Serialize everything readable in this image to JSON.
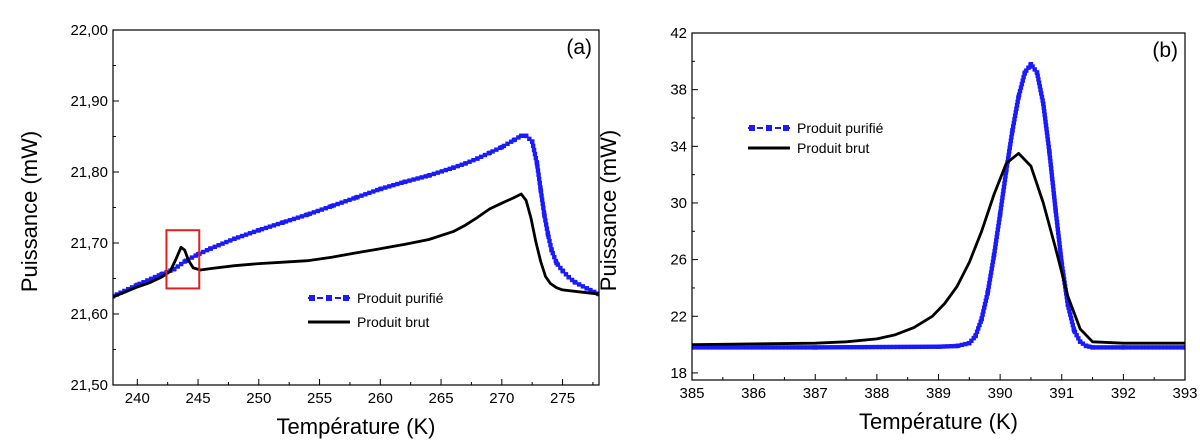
{
  "colors": {
    "purified": "#1a1aff",
    "raw": "#000000",
    "highlight_box": "#e02020"
  },
  "chart_data": [
    {
      "type": "line",
      "panel_label": "(a)",
      "xlabel": "Température (K)",
      "ylabel": "Puissance (mW)",
      "xlim": [
        238,
        278
      ],
      "ylim": [
        21.5,
        22.0
      ],
      "xticks": [
        "240",
        "245",
        "250",
        "255",
        "260",
        "265",
        "270",
        "275"
      ],
      "yticks": [
        "21,50",
        "21,60",
        "21,70",
        "21,80",
        "21,90",
        "22,00"
      ],
      "grid": false,
      "legend_position": "lower-center",
      "highlight_region": {
        "x": [
          242.4,
          245.1
        ],
        "y": [
          21.636,
          21.718
        ]
      },
      "series": [
        {
          "name": "Produit purifié",
          "style": "dashed-square-markers",
          "x": [
            238,
            240,
            242,
            243,
            244,
            245,
            246,
            248,
            250,
            252,
            254,
            256,
            258,
            260,
            262,
            264,
            266,
            267,
            268,
            269,
            270,
            271,
            271.6,
            272,
            272.5,
            272.9,
            273.2,
            273.5,
            273.8,
            274.1,
            274.5,
            275,
            275.5,
            276,
            277,
            278
          ],
          "y": [
            21.625,
            21.641,
            21.656,
            21.663,
            21.675,
            21.684,
            21.692,
            21.706,
            21.718,
            21.729,
            21.74,
            21.752,
            21.764,
            21.776,
            21.786,
            21.795,
            21.806,
            21.812,
            21.819,
            21.827,
            21.835,
            21.845,
            21.851,
            21.851,
            21.843,
            21.812,
            21.775,
            21.74,
            21.712,
            21.69,
            21.672,
            21.661,
            21.652,
            21.645,
            21.636,
            21.628
          ]
        },
        {
          "name": "Produit brut",
          "style": "solid",
          "x": [
            238,
            240,
            241,
            242,
            242.7,
            243.2,
            243.6,
            243.9,
            244.2,
            244.6,
            245.2,
            246,
            248,
            250,
            252,
            254,
            256,
            258,
            260,
            262,
            264,
            266,
            267,
            268,
            269,
            270,
            271,
            271.6,
            272,
            272.4,
            272.8,
            273.2,
            273.6,
            274,
            274.5,
            275,
            276,
            277,
            278
          ],
          "y": [
            21.624,
            21.638,
            21.644,
            21.652,
            21.66,
            21.678,
            21.694,
            21.69,
            21.676,
            21.665,
            21.662,
            21.664,
            21.668,
            21.671,
            21.673,
            21.675,
            21.68,
            21.686,
            21.692,
            21.698,
            21.705,
            21.716,
            21.725,
            21.736,
            21.748,
            21.756,
            21.764,
            21.769,
            21.76,
            21.735,
            21.702,
            21.674,
            21.653,
            21.643,
            21.637,
            21.634,
            21.632,
            21.63,
            21.628
          ]
        }
      ]
    },
    {
      "type": "line",
      "panel_label": "(b)",
      "xlabel": "Température (K)",
      "ylabel": "Puissance (mW)",
      "xlim": [
        385,
        393
      ],
      "ylim": [
        17.5,
        42
      ],
      "xticks": [
        "385",
        "386",
        "387",
        "388",
        "389",
        "390",
        "391",
        "392",
        "393"
      ],
      "yticks": [
        "18",
        "22",
        "26",
        "30",
        "34",
        "38",
        "42"
      ],
      "grid": false,
      "legend_position": "upper-left",
      "series": [
        {
          "name": "Produit purifié",
          "style": "dashed-square-markers",
          "x": [
            385,
            387,
            389,
            389.3,
            389.5,
            389.6,
            389.7,
            389.8,
            389.9,
            390,
            390.1,
            390.2,
            390.3,
            390.4,
            390.5,
            390.6,
            390.7,
            390.8,
            390.9,
            391,
            391.1,
            391.2,
            391.3,
            391.4,
            391.5,
            392,
            393
          ],
          "y": [
            19.8,
            19.8,
            19.85,
            19.9,
            20.1,
            20.6,
            21.8,
            23.7,
            26.3,
            29.2,
            32.3,
            35.1,
            37.5,
            39.2,
            39.8,
            39.2,
            37.0,
            33.6,
            29.5,
            25.7,
            22.8,
            21.0,
            20.2,
            19.9,
            19.8,
            19.8,
            19.8
          ]
        },
        {
          "name": "Produit brut",
          "style": "solid",
          "x": [
            385,
            386,
            387,
            387.5,
            388,
            388.3,
            388.6,
            388.9,
            389.1,
            389.3,
            389.5,
            389.7,
            389.9,
            390.1,
            390.3,
            390.5,
            390.7,
            390.9,
            391.1,
            391.3,
            391.5,
            392,
            393
          ],
          "y": [
            20.0,
            20.05,
            20.1,
            20.2,
            20.4,
            20.7,
            21.2,
            22.0,
            22.9,
            24.1,
            25.8,
            28.0,
            30.6,
            32.8,
            33.5,
            32.6,
            30.0,
            26.8,
            23.4,
            21.1,
            20.2,
            20.1,
            20.1
          ]
        }
      ]
    }
  ]
}
